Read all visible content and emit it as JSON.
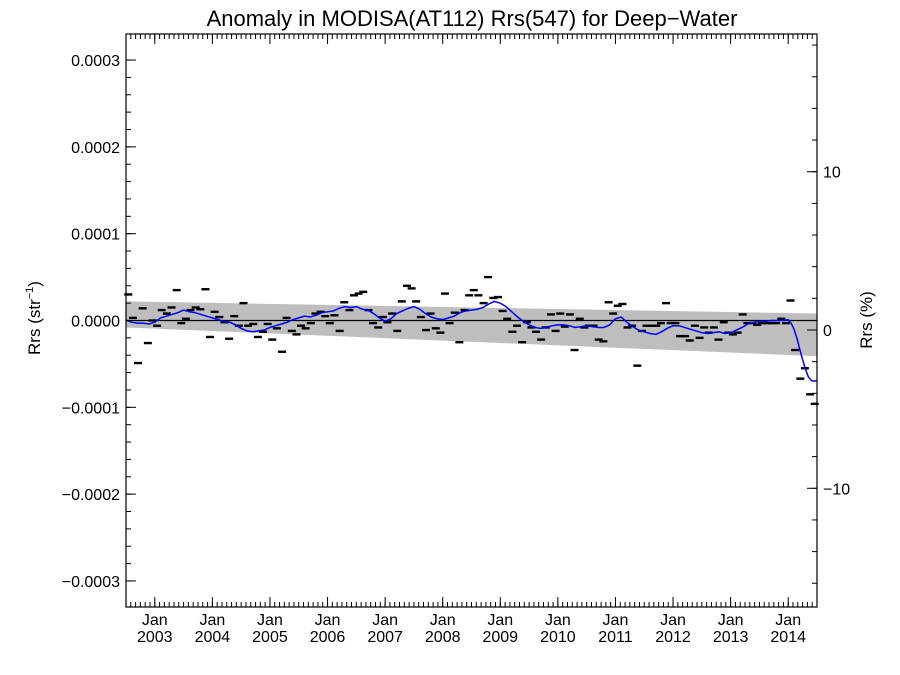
{
  "chart_data": {
    "type": "scatter",
    "title": "Anomaly in MODISA(AT112) Rrs(547) for Deep−Water",
    "ylabel": "Rrs (str",
    "ylabel_sup": "−1",
    "ylabel_close": ")",
    "y2label": "Rrs (%)",
    "xlim": [
      2002.5,
      2014.5
    ],
    "ylim": [
      -0.00033,
      0.00033
    ],
    "y2lim": [
      -17.5,
      18.7
    ],
    "y_ticks": [
      {
        "value": 0.0003,
        "label": "0.0003"
      },
      {
        "value": 0.0002,
        "label": "0.0002"
      },
      {
        "value": 0.0001,
        "label": "0.0001"
      },
      {
        "value": 0.0,
        "label": "0.0000"
      },
      {
        "value": -0.0001,
        "label": "−0.0001"
      },
      {
        "value": -0.0002,
        "label": "−0.0002"
      },
      {
        "value": -0.0003,
        "label": "−0.0003"
      }
    ],
    "y2_ticks": [
      {
        "value": 10,
        "label": "10"
      },
      {
        "value": 0,
        "label": "0"
      },
      {
        "value": -10,
        "label": "−10"
      }
    ],
    "x_ticks": [
      {
        "value": 2003.0,
        "month": "Jan",
        "year": "2003"
      },
      {
        "value": 2004.0,
        "month": "Jan",
        "year": "2004"
      },
      {
        "value": 2005.0,
        "month": "Jan",
        "year": "2005"
      },
      {
        "value": 2006.0,
        "month": "Jan",
        "year": "2006"
      },
      {
        "value": 2007.0,
        "month": "Jan",
        "year": "2007"
      },
      {
        "value": 2008.0,
        "month": "Jan",
        "year": "2008"
      },
      {
        "value": 2009.0,
        "month": "Jan",
        "year": "2009"
      },
      {
        "value": 2010.0,
        "month": "Jan",
        "year": "2010"
      },
      {
        "value": 2011.0,
        "month": "Jan",
        "year": "2011"
      },
      {
        "value": 2012.0,
        "month": "Jan",
        "year": "2012"
      },
      {
        "value": 2013.0,
        "month": "Jan",
        "year": "2013"
      },
      {
        "value": 2014.0,
        "month": "Jan",
        "year": "2014"
      }
    ],
    "band": {
      "x": [
        2002.5,
        2014.5
      ],
      "upper": [
        2.2e-05,
        8e-06
      ],
      "lower": [
        -8e-06,
        -4.1e-05
      ],
      "color": "#bebebe"
    },
    "zero_line": {
      "y": 0.0,
      "color": "#000000"
    },
    "monthly_anomalies": [
      {
        "x": 2002.54,
        "y": 3e-05
      },
      {
        "x": 2002.62,
        "y": 3e-06
      },
      {
        "x": 2002.71,
        "y": -4.9e-05
      },
      {
        "x": 2002.79,
        "y": 1.4e-05
      },
      {
        "x": 2002.88,
        "y": -2.6e-05
      },
      {
        "x": 2002.96,
        "y": 0.0
      },
      {
        "x": 2003.04,
        "y": -6e-06
      },
      {
        "x": 2003.12,
        "y": 1.2e-05
      },
      {
        "x": 2003.21,
        "y": 8e-06
      },
      {
        "x": 2003.29,
        "y": 1.5e-05
      },
      {
        "x": 2003.38,
        "y": 3.5e-05
      },
      {
        "x": 2003.46,
        "y": -3e-06
      },
      {
        "x": 2003.54,
        "y": 2e-06
      },
      {
        "x": 2003.62,
        "y": 1.2e-05
      },
      {
        "x": 2003.71,
        "y": 1.5e-05
      },
      {
        "x": 2003.79,
        "y": 1.3e-05
      },
      {
        "x": 2003.88,
        "y": 3.6e-05
      },
      {
        "x": 2003.96,
        "y": -1.9e-05
      },
      {
        "x": 2004.04,
        "y": 1e-05
      },
      {
        "x": 2004.12,
        "y": 4e-06
      },
      {
        "x": 2004.21,
        "y": -2e-06
      },
      {
        "x": 2004.29,
        "y": -2.1e-05
      },
      {
        "x": 2004.38,
        "y": 5e-06
      },
      {
        "x": 2004.46,
        "y": -6e-06
      },
      {
        "x": 2004.54,
        "y": 2e-05
      },
      {
        "x": 2004.62,
        "y": -6e-06
      },
      {
        "x": 2004.71,
        "y": -4e-06
      },
      {
        "x": 2004.79,
        "y": -1.9e-05
      },
      {
        "x": 2004.88,
        "y": -1.3e-05
      },
      {
        "x": 2004.96,
        "y": -4e-06
      },
      {
        "x": 2005.04,
        "y": -2.2e-05
      },
      {
        "x": 2005.12,
        "y": -9e-06
      },
      {
        "x": 2005.21,
        "y": -3.6e-05
      },
      {
        "x": 2005.29,
        "y": 3e-06
      },
      {
        "x": 2005.38,
        "y": -1.2e-05
      },
      {
        "x": 2005.46,
        "y": -1.6e-05
      },
      {
        "x": 2005.54,
        "y": -6e-06
      },
      {
        "x": 2005.62,
        "y": -9e-06
      },
      {
        "x": 2005.71,
        "y": -3e-06
      },
      {
        "x": 2005.79,
        "y": 8e-06
      },
      {
        "x": 2005.88,
        "y": 1e-05
      },
      {
        "x": 2005.96,
        "y": 5e-06
      },
      {
        "x": 2006.04,
        "y": -3e-06
      },
      {
        "x": 2006.12,
        "y": 6e-06
      },
      {
        "x": 2006.21,
        "y": -1.2e-05
      },
      {
        "x": 2006.29,
        "y": 2.1e-05
      },
      {
        "x": 2006.38,
        "y": 1.2e-05
      },
      {
        "x": 2006.46,
        "y": 2.9e-05
      },
      {
        "x": 2006.54,
        "y": 3.1e-05
      },
      {
        "x": 2006.62,
        "y": 3.3e-05
      },
      {
        "x": 2006.71,
        "y": 1.2e-05
      },
      {
        "x": 2006.79,
        "y": -3e-06
      },
      {
        "x": 2006.88,
        "y": -8e-06
      },
      {
        "x": 2006.96,
        "y": 4e-06
      },
      {
        "x": 2007.04,
        "y": -2e-06
      },
      {
        "x": 2007.12,
        "y": 8e-06
      },
      {
        "x": 2007.21,
        "y": -1.2e-05
      },
      {
        "x": 2007.29,
        "y": 2.2e-05
      },
      {
        "x": 2007.38,
        "y": 4e-05
      },
      {
        "x": 2007.46,
        "y": 3.7e-05
      },
      {
        "x": 2007.54,
        "y": 2.2e-05
      },
      {
        "x": 2007.62,
        "y": 4e-06
      },
      {
        "x": 2007.71,
        "y": -1.1e-05
      },
      {
        "x": 2007.79,
        "y": 8e-06
      },
      {
        "x": 2007.88,
        "y": -9e-06
      },
      {
        "x": 2007.96,
        "y": -1.4e-05
      },
      {
        "x": 2008.04,
        "y": 3.1e-05
      },
      {
        "x": 2008.12,
        "y": -3e-06
      },
      {
        "x": 2008.21,
        "y": 9e-06
      },
      {
        "x": 2008.29,
        "y": -2.5e-05
      },
      {
        "x": 2008.38,
        "y": 1.2e-05
      },
      {
        "x": 2008.46,
        "y": 2.9e-05
      },
      {
        "x": 2008.54,
        "y": 3.5e-05
      },
      {
        "x": 2008.62,
        "y": 2.9e-05
      },
      {
        "x": 2008.71,
        "y": 2e-05
      },
      {
        "x": 2008.79,
        "y": 5e-05
      },
      {
        "x": 2008.88,
        "y": 2.6e-05
      },
      {
        "x": 2008.96,
        "y": 2.7e-05
      },
      {
        "x": 2009.04,
        "y": 1.1e-05
      },
      {
        "x": 2009.12,
        "y": 2e-06
      },
      {
        "x": 2009.21,
        "y": -1.3e-05
      },
      {
        "x": 2009.29,
        "y": -6e-06
      },
      {
        "x": 2009.38,
        "y": -2.5e-05
      },
      {
        "x": 2009.46,
        "y": -2e-06
      },
      {
        "x": 2009.54,
        "y": -8e-06
      },
      {
        "x": 2009.62,
        "y": -1.3e-05
      },
      {
        "x": 2009.71,
        "y": -2.2e-05
      },
      {
        "x": 2009.79,
        "y": -8e-06
      },
      {
        "x": 2009.88,
        "y": 7e-06
      },
      {
        "x": 2009.96,
        "y": -1.2e-05
      },
      {
        "x": 2010.04,
        "y": 8e-06
      },
      {
        "x": 2010.12,
        "y": -7e-06
      },
      {
        "x": 2010.21,
        "y": 7e-06
      },
      {
        "x": 2010.29,
        "y": -3.4e-05
      },
      {
        "x": 2010.38,
        "y": 2e-06
      },
      {
        "x": 2010.46,
        "y": -8e-06
      },
      {
        "x": 2010.54,
        "y": -6e-06
      },
      {
        "x": 2010.62,
        "y": -6e-06
      },
      {
        "x": 2010.71,
        "y": -2.2e-05
      },
      {
        "x": 2010.79,
        "y": -2.4e-05
      },
      {
        "x": 2010.88,
        "y": 2.1e-05
      },
      {
        "x": 2010.96,
        "y": 8e-06
      },
      {
        "x": 2011.04,
        "y": 1.7e-05
      },
      {
        "x": 2011.12,
        "y": 1.9e-05
      },
      {
        "x": 2011.21,
        "y": -8e-06
      },
      {
        "x": 2011.29,
        "y": -6e-06
      },
      {
        "x": 2011.38,
        "y": -5.2e-05
      },
      {
        "x": 2011.46,
        "y": -1.2e-05
      },
      {
        "x": 2011.54,
        "y": -6e-06
      },
      {
        "x": 2011.62,
        "y": -6e-06
      },
      {
        "x": 2011.71,
        "y": -6e-06
      },
      {
        "x": 2011.79,
        "y": -3e-06
      },
      {
        "x": 2011.88,
        "y": 2e-05
      },
      {
        "x": 2011.96,
        "y": -3e-06
      },
      {
        "x": 2012.04,
        "y": -3e-06
      },
      {
        "x": 2012.12,
        "y": -1.8e-05
      },
      {
        "x": 2012.21,
        "y": -1.8e-05
      },
      {
        "x": 2012.29,
        "y": -2.3e-05
      },
      {
        "x": 2012.38,
        "y": -6e-06
      },
      {
        "x": 2012.46,
        "y": -2e-05
      },
      {
        "x": 2012.54,
        "y": -8e-06
      },
      {
        "x": 2012.62,
        "y": -1.4e-05
      },
      {
        "x": 2012.71,
        "y": -8e-06
      },
      {
        "x": 2012.79,
        "y": -2.2e-05
      },
      {
        "x": 2012.88,
        "y": -2e-06
      },
      {
        "x": 2012.96,
        "y": -1.4e-05
      },
      {
        "x": 2013.04,
        "y": -1.6e-05
      },
      {
        "x": 2013.12,
        "y": -1.4e-05
      },
      {
        "x": 2013.21,
        "y": 7e-06
      },
      {
        "x": 2013.29,
        "y": -3e-06
      },
      {
        "x": 2013.38,
        "y": -3e-06
      },
      {
        "x": 2013.46,
        "y": -5e-06
      },
      {
        "x": 2013.54,
        "y": -3e-06
      },
      {
        "x": 2013.62,
        "y": -3e-06
      },
      {
        "x": 2013.71,
        "y": -3e-06
      },
      {
        "x": 2013.79,
        "y": -3e-06
      },
      {
        "x": 2013.88,
        "y": 2e-06
      },
      {
        "x": 2013.96,
        "y": -3e-06
      },
      {
        "x": 2014.04,
        "y": 2.3e-05
      },
      {
        "x": 2014.12,
        "y": -3.4e-05
      },
      {
        "x": 2014.21,
        "y": -6.7e-05
      },
      {
        "x": 2014.29,
        "y": -5.5e-05
      },
      {
        "x": 2014.38,
        "y": -8.5e-05
      },
      {
        "x": 2014.46,
        "y": -9.6e-05
      }
    ],
    "running_mean": {
      "color": "#0000ff",
      "x": [
        2002.5,
        2002.6,
        2002.7,
        2002.8,
        2002.9,
        2003.0,
        2003.1,
        2003.2,
        2003.3,
        2003.4,
        2003.5,
        2003.6,
        2003.7,
        2003.8,
        2003.9,
        2004.0,
        2004.1,
        2004.2,
        2004.3,
        2004.4,
        2004.5,
        2004.6,
        2004.7,
        2004.8,
        2004.9,
        2005.0,
        2005.1,
        2005.2,
        2005.3,
        2005.4,
        2005.5,
        2005.6,
        2005.7,
        2005.8,
        2005.9,
        2006.0,
        2006.1,
        2006.2,
        2006.3,
        2006.4,
        2006.5,
        2006.6,
        2006.7,
        2006.8,
        2006.9,
        2007.0,
        2007.1,
        2007.2,
        2007.3,
        2007.4,
        2007.5,
        2007.6,
        2007.7,
        2007.8,
        2007.9,
        2008.0,
        2008.1,
        2008.2,
        2008.3,
        2008.4,
        2008.5,
        2008.6,
        2008.7,
        2008.8,
        2008.9,
        2009.0,
        2009.1,
        2009.2,
        2009.3,
        2009.4,
        2009.5,
        2009.6,
        2009.7,
        2009.8,
        2009.9,
        2010.0,
        2010.1,
        2010.2,
        2010.3,
        2010.4,
        2010.5,
        2010.6,
        2010.7,
        2010.8,
        2010.9,
        2011.0,
        2011.1,
        2011.2,
        2011.3,
        2011.4,
        2011.5,
        2011.6,
        2011.7,
        2011.8,
        2011.9,
        2012.0,
        2012.1,
        2012.2,
        2012.3,
        2012.4,
        2012.5,
        2012.6,
        2012.7,
        2012.8,
        2012.9,
        2013.0,
        2013.1,
        2013.2,
        2013.3,
        2013.4,
        2013.5,
        2013.6,
        2013.7,
        2013.8,
        2013.9,
        2014.0,
        2014.05,
        2014.1,
        2014.15,
        2014.2,
        2014.25,
        2014.3,
        2014.35,
        2014.4,
        2014.45,
        2014.5
      ],
      "y": [
        5e-07,
        -2e-06,
        -3e-06,
        -3e-06,
        -4e-06,
        -2e-06,
        3e-06,
        5e-06,
        7e-06,
        9e-06,
        1.2e-05,
        1e-05,
        9e-06,
        7e-06,
        5e-06,
        3e-06,
        1e-06,
        -1e-06,
        -2e-06,
        -5e-06,
        -9e-06,
        -1.2e-05,
        -1.3e-05,
        -1.2e-05,
        -1.1e-05,
        -8e-06,
        -6e-06,
        -4e-06,
        -2e-06,
        1e-06,
        3e-06,
        5e-06,
        4e-06,
        6e-06,
        9e-06,
        1e-05,
        1.1e-05,
        1.4e-05,
        1.6e-05,
        1.5e-05,
        1.6e-05,
        1.3e-05,
        1.2e-05,
        8e-06,
        3e-06,
        -1e-06,
        2e-06,
        8e-06,
        1.1e-05,
        1.4e-05,
        1.6e-05,
        1.3e-05,
        8e-06,
        4e-06,
        2e-06,
        1e-06,
        3e-06,
        5e-06,
        9e-06,
        1.1e-05,
        1.2e-05,
        1.3e-05,
        1.5e-05,
        1.9e-05,
        2.2e-05,
        2e-05,
        1.6e-05,
        1e-05,
        4e-06,
        -1e-06,
        -5e-06,
        -8e-06,
        -9e-06,
        -8e-06,
        -6e-06,
        -5e-06,
        -5e-06,
        -6e-06,
        -8e-06,
        -7e-06,
        -6e-06,
        -7e-06,
        -8e-06,
        -8e-06,
        -5e-06,
        2e-06,
        4e-06,
        -2e-06,
        -7e-06,
        -1.1e-05,
        -1.3e-05,
        -1.5e-05,
        -1.6e-05,
        -1.3e-05,
        -9e-06,
        -6e-06,
        -6e-06,
        -8e-06,
        -1e-05,
        -1.2e-05,
        -1.4e-05,
        -1.5e-05,
        -1.4e-05,
        -1.3e-05,
        -1.5e-05,
        -1.4e-05,
        -1.1e-05,
        -8e-06,
        -4e-06,
        -2e-06,
        -1e-06,
        -1e-06,
        0.0,
        0.0,
        0.0,
        1e-06,
        -3e-06,
        -1e-05,
        -2e-05,
        -3.3e-05,
        -4.5e-05,
        -5.6e-05,
        -6.5e-05,
        -6.9e-05,
        -7e-05,
        -6.9e-05
      ]
    }
  }
}
